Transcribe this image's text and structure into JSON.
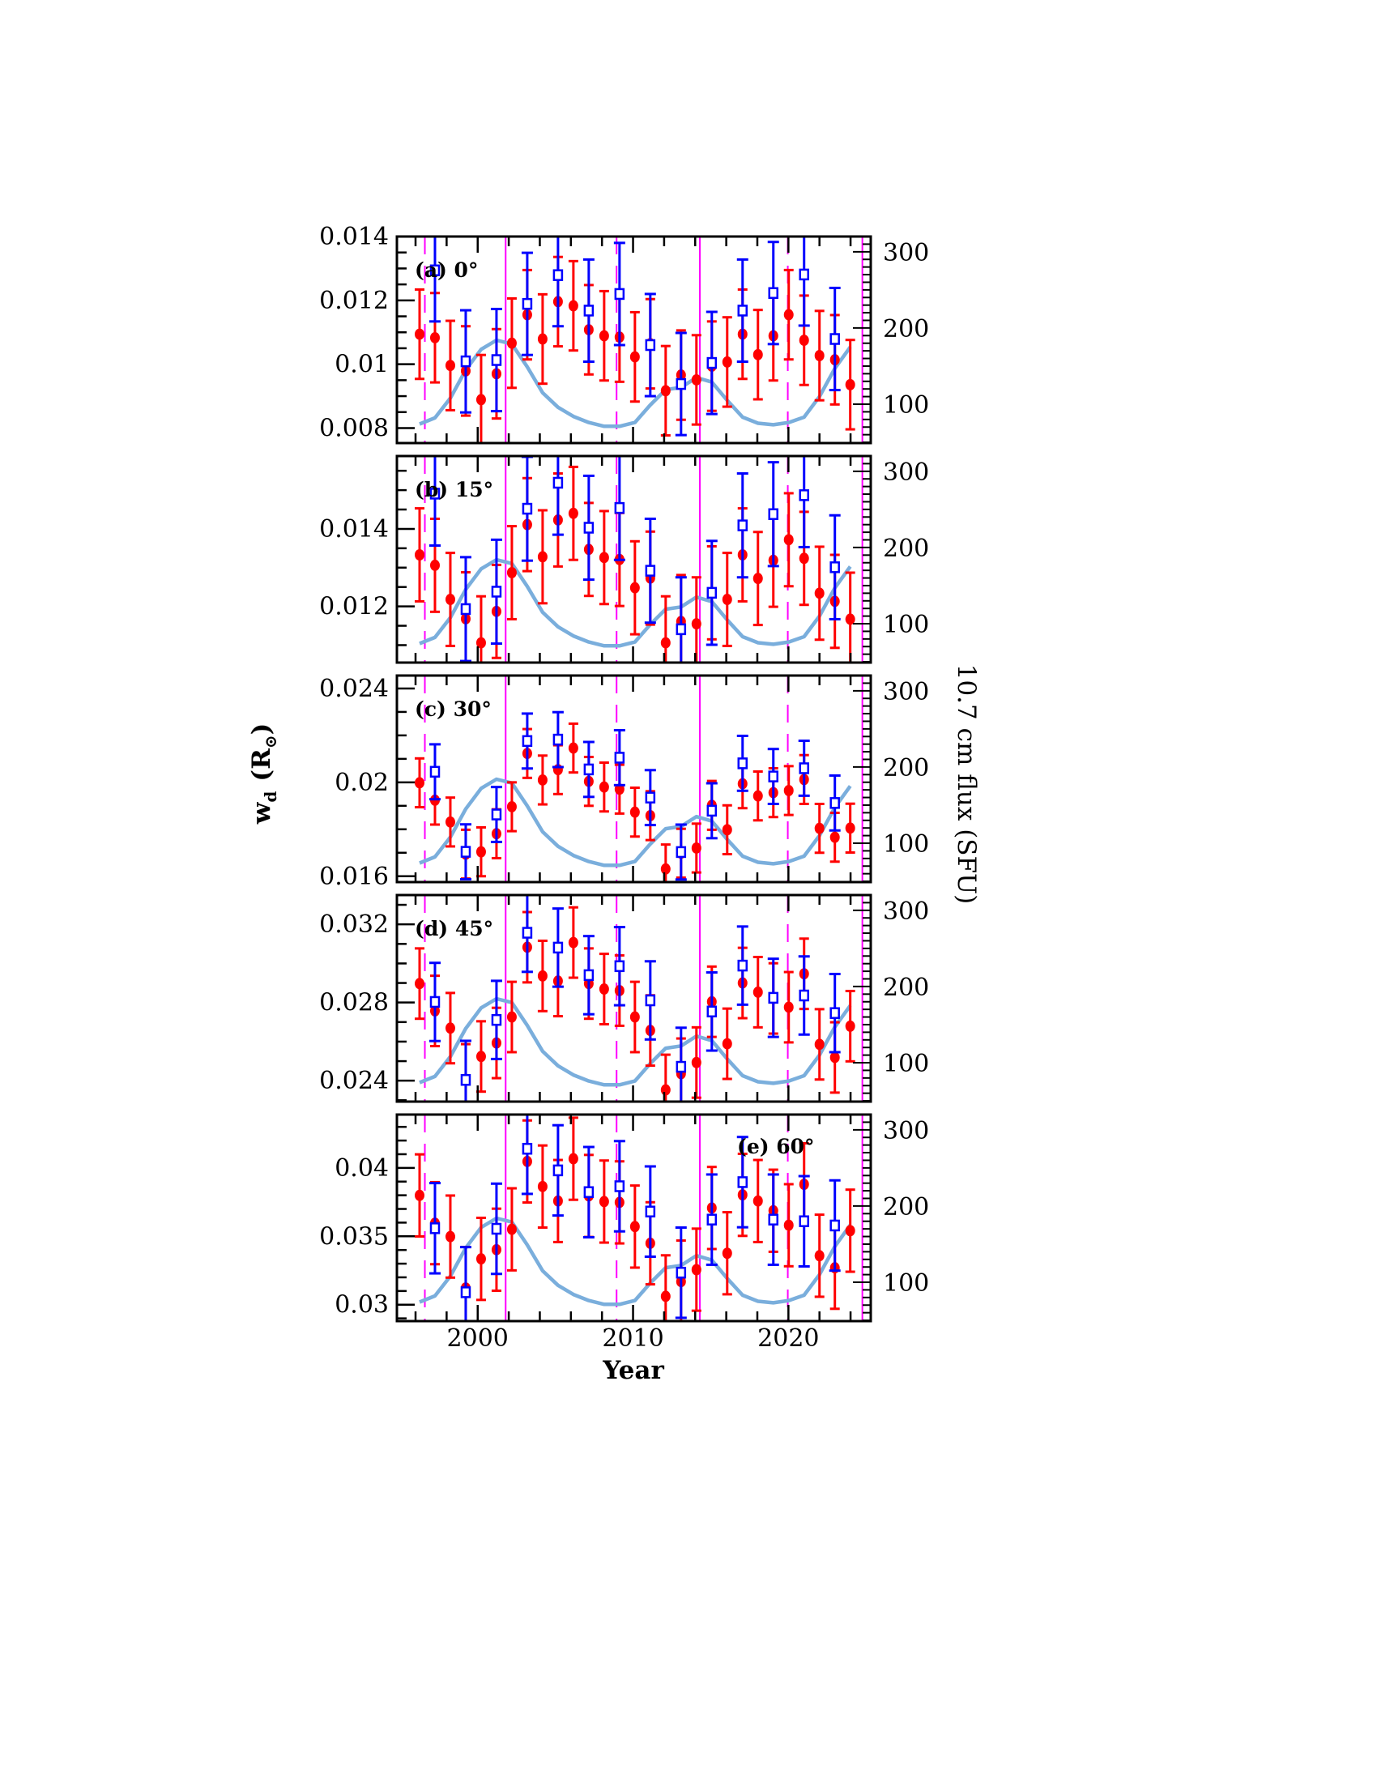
{
  "chart_data": {
    "type": "scatter",
    "xlabel": "Year",
    "ylabel_left": "w",
    "ylabel_left_subscript": "d",
    "ylabel_left_unit": "(R",
    "ylabel_left_unit_symbol": "⊙",
    "ylabel_left_unit_close": ")",
    "ylabel_right": "10.7 cm flux (SFU)",
    "xlim": [
      1994.8,
      2025.3
    ],
    "x_tick_labels": [
      "2000",
      "2010",
      "2020"
    ],
    "x_tick_values": [
      2000,
      2010,
      2020
    ],
    "x_minor_step": 2,
    "right_ylim": [
      49,
      320
    ],
    "right_tick_labels": [
      "300",
      "200",
      "100"
    ],
    "right_tick_values": [
      300,
      200,
      100
    ],
    "right_minor_step": 10,
    "colors": {
      "red": "#ff0000",
      "blue": "#0000ff",
      "flux": "#7aaedc",
      "vlines": "#ff00ff",
      "frame": "#000000"
    },
    "vlines_dashed": [
      1996.6,
      2008.94,
      2019.96
    ],
    "vlines_solid": [
      2001.8,
      2014.3,
      2024.76
    ],
    "red_years": [
      1996.26,
      1997.25,
      1998.24,
      1999.23,
      2000.22,
      2001.21,
      2002.2,
      2003.19,
      2004.18,
      2005.17,
      2006.16,
      2007.15,
      2008.14,
      2009.13,
      2010.12,
      2011.11,
      2012.1,
      2013.09,
      2014.08,
      2015.07,
      2016.06,
      2017.05,
      2018.04,
      2019.03,
      2020.02,
      2021.01,
      2022.0,
      2022.99,
      2023.98
    ],
    "blue_years": [
      1997.25,
      1999.23,
      2001.21,
      2003.19,
      2005.17,
      2007.15,
      2009.13,
      2011.11,
      2013.09,
      2015.07,
      2017.05,
      2019.03,
      2021.01,
      2022.99
    ],
    "flux_years": [
      1996.26,
      1997.25,
      1998.24,
      1999.23,
      2000.22,
      2001.21,
      2002.2,
      2003.19,
      2004.18,
      2005.17,
      2006.16,
      2007.15,
      2008.14,
      2009.13,
      2010.12,
      2011.11,
      2012.1,
      2013.09,
      2014.08,
      2015.07,
      2016.06,
      2017.05,
      2018.04,
      2019.03,
      2020.02,
      2021.01,
      2022.0,
      2022.99,
      2023.98
    ],
    "flux_values": [
      74,
      82,
      108,
      145,
      172,
      184,
      179,
      149,
      115,
      96,
      84,
      76,
      71,
      71,
      76,
      99,
      119,
      122,
      135,
      129,
      105,
      83,
      75,
      73,
      76,
      83,
      110,
      147,
      175
    ],
    "panels": [
      {
        "label": "(a) 0°",
        "ylim": [
          0.00753,
          0.014
        ],
        "tick_labels": [
          "0.014",
          "0.012",
          "0.01",
          "0.008"
        ],
        "tick_values": [
          0.014,
          0.012,
          0.01,
          0.008
        ],
        "minor_step": 0.0005,
        "red_values": [
          0.01094,
          0.01083,
          0.00996,
          0.00979,
          0.00889,
          0.0097,
          0.01066,
          0.01155,
          0.01079,
          0.01196,
          0.01183,
          0.01108,
          0.01089,
          0.01085,
          0.01023,
          0.01064,
          0.00917,
          0.00966,
          0.00951,
          0.00994,
          0.01007,
          0.01094,
          0.0103,
          0.01089,
          0.01155,
          0.01075,
          0.01027,
          0.01014,
          0.00936
        ],
        "red_err": 0.0014,
        "blue_values": [
          0.01294,
          0.01009,
          0.01013,
          0.01189,
          0.01279,
          0.01168,
          0.0122,
          0.0106,
          0.00938,
          0.01004,
          0.01168,
          0.01223,
          0.01281,
          0.01079
        ],
        "blue_err": 0.0016
      },
      {
        "label": "(b) 15°",
        "ylim": [
          0.01055,
          0.01588
        ],
        "tick_labels": [
          "0.014",
          "0.012"
        ],
        "tick_values": [
          0.014,
          0.012
        ],
        "minor_step": 0.0005,
        "red_values": [
          0.01333,
          0.01306,
          0.01218,
          0.01168,
          0.01106,
          0.01187,
          0.01287,
          0.01411,
          0.01328,
          0.01423,
          0.0144,
          0.01347,
          0.01326,
          0.01321,
          0.01248,
          0.01273,
          0.01106,
          0.01161,
          0.01155,
          0.01235,
          0.01218,
          0.01333,
          0.01272,
          0.01319,
          0.01372,
          0.01324,
          0.01234,
          0.01213,
          0.01167
        ],
        "red_err": 0.0012,
        "blue_values": [
          0.01491,
          0.01193,
          0.01238,
          0.01452,
          0.01519,
          0.01403,
          0.01454,
          0.01292,
          0.01141,
          0.01235,
          0.01409,
          0.01438,
          0.01487,
          0.01301
        ],
        "blue_err": 0.00134
      },
      {
        "label": "(c) 30°",
        "ylim": [
          0.01575,
          0.02455
        ],
        "tick_labels": [
          "0.024",
          "0.02",
          "0.016"
        ],
        "tick_values": [
          0.024,
          0.02,
          0.016
        ],
        "minor_step": 0.001,
        "red_values": [
          0.01998,
          0.01924,
          0.01831,
          0.01694,
          0.01704,
          0.01781,
          0.01896,
          0.02123,
          0.0201,
          0.02054,
          0.02146,
          0.02004,
          0.0198,
          0.01971,
          0.01873,
          0.01858,
          0.01631,
          0.01698,
          0.0172,
          0.01902,
          0.01798,
          0.01994,
          0.01942,
          0.01956,
          0.01965,
          0.02012,
          0.01804,
          0.01766,
          0.01805
        ],
        "red_err": 0.00104,
        "blue_values": [
          0.02045,
          0.01704,
          0.01863,
          0.02176,
          0.02182,
          0.02055,
          0.02105,
          0.01935,
          0.01703,
          0.01879,
          0.02081,
          0.02025,
          0.0206,
          0.01912
        ],
        "blue_err": 0.00117
      },
      {
        "label": "(d) 45°",
        "ylim": [
          0.02293,
          0.0335
        ],
        "tick_labels": [
          "0.032",
          "0.028",
          "0.024"
        ],
        "tick_values": [
          0.032,
          0.028,
          0.024
        ],
        "minor_step": 0.001,
        "red_values": [
          0.02897,
          0.02757,
          0.02669,
          0.02407,
          0.02524,
          0.02593,
          0.02726,
          0.03083,
          0.02936,
          0.0291,
          0.03107,
          0.02897,
          0.02869,
          0.02861,
          0.02726,
          0.02657,
          0.02353,
          0.02436,
          0.02493,
          0.02804,
          0.02589,
          0.029,
          0.02853,
          0.02821,
          0.02776,
          0.02947,
          0.02586,
          0.02519,
          0.02679
        ],
        "red_err": 0.0018,
        "blue_values": [
          0.02803,
          0.02404,
          0.02711,
          0.03157,
          0.03081,
          0.0294,
          0.02986,
          0.02811,
          0.02471,
          0.02754,
          0.02989,
          0.02824,
          0.02836,
          0.02746
        ],
        "blue_err": 0.002
      },
      {
        "label": "(e) 60°",
        "ylim": [
          0.0288,
          0.0439
        ],
        "tick_labels": [
          "0.04",
          "0.035",
          "0.03"
        ],
        "tick_values": [
          0.04,
          0.035,
          0.03
        ],
        "minor_step": 0.001,
        "red_values": [
          0.03799,
          0.03596,
          0.03498,
          0.03122,
          0.03335,
          0.03402,
          0.03551,
          0.04047,
          0.03864,
          0.03758,
          0.04067,
          0.03795,
          0.03754,
          0.03748,
          0.03571,
          0.03449,
          0.03061,
          0.03169,
          0.03256,
          0.03707,
          0.03376,
          0.03803,
          0.03758,
          0.03687,
          0.03581,
          0.0388,
          0.03358,
          0.0327,
          0.03541
        ],
        "red_err": 0.003,
        "blue_values": [
          0.03559,
          0.03091,
          0.03555,
          0.0414,
          0.03982,
          0.03823,
          0.03866,
          0.03681,
          0.03234,
          0.03622,
          0.03896,
          0.03622,
          0.0361,
          0.03579
        ],
        "blue_err": 0.0033
      }
    ]
  }
}
